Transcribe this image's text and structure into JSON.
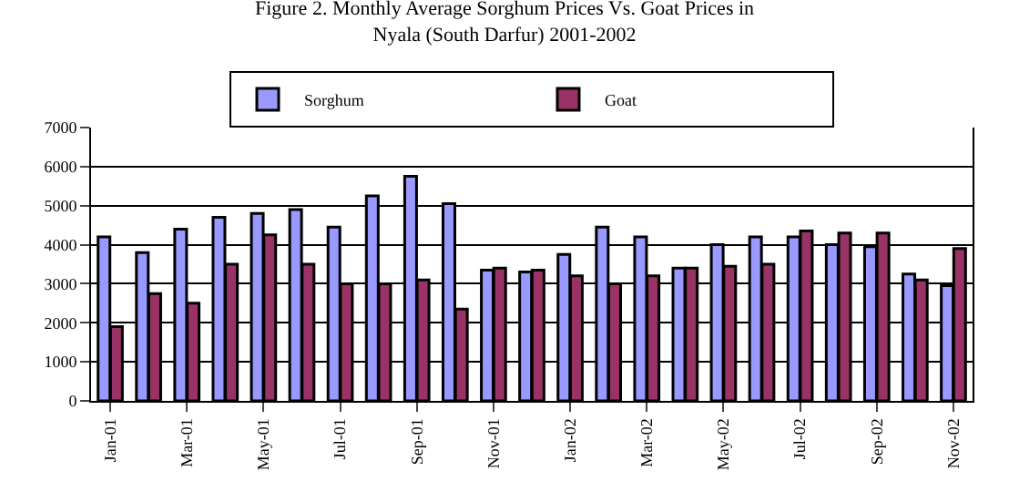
{
  "chart_data": {
    "type": "bar",
    "title": "Figure 2. Monthly Average Sorghum Prices Vs. Goat Prices in\nNyala (South Darfur) 2001-2002",
    "categories": [
      "Jan-01",
      null,
      "Mar-01",
      null,
      "May-01",
      null,
      "Jul-01",
      null,
      "Sep-01",
      null,
      "Nov-01",
      null,
      "Jan-02",
      null,
      "Mar-02",
      null,
      "May-02",
      null,
      "Jul-02",
      null,
      "Sep-02",
      null,
      "Nov-02"
    ],
    "series": [
      {
        "name": "Sorghum",
        "color": "#9999ff",
        "values": [
          4200,
          3800,
          4400,
          4700,
          4800,
          4900,
          4450,
          5250,
          5750,
          5050,
          3350,
          3300,
          3750,
          4450,
          4200,
          3400,
          4000,
          4200,
          4200,
          4000,
          3950,
          3250,
          2950
        ]
      },
      {
        "name": "Goat",
        "color": "#993366",
        "values": [
          1900,
          2750,
          2500,
          3500,
          4250,
          3500,
          3000,
          3000,
          3100,
          2350,
          3400,
          3350,
          3200,
          3000,
          3200,
          3400,
          3450,
          3500,
          4350,
          4300,
          4300,
          3100,
          3900
        ]
      }
    ],
    "ylim": [
      0,
      7000
    ],
    "yticks": [
      0,
      1000,
      2000,
      3000,
      4000,
      5000,
      6000,
      7000
    ],
    "grid": "y",
    "legend": "top"
  }
}
